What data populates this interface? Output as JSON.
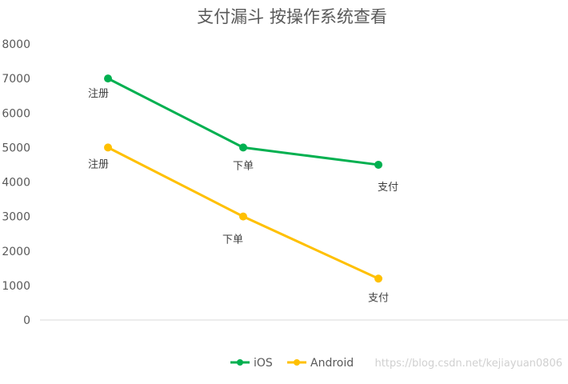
{
  "chart_data": {
    "type": "line",
    "title": "支付漏斗 按操作系统查看",
    "categories": [
      "注册",
      "下单",
      "支付"
    ],
    "series": [
      {
        "name": "iOS",
        "color": "#00b050",
        "values": [
          7000,
          5000,
          4500
        ],
        "data_labels": [
          "注册",
          "下单",
          "支付"
        ]
      },
      {
        "name": "Android",
        "color": "#ffc000",
        "values": [
          5000,
          3000,
          1200
        ],
        "data_labels": [
          "注册",
          "下单",
          "支付"
        ]
      }
    ],
    "ylim": [
      0,
      8000
    ],
    "yticks": [
      0,
      1000,
      2000,
      3000,
      4000,
      5000,
      6000,
      7000,
      8000
    ],
    "xlabel": "",
    "ylabel": "",
    "grid": false,
    "legend": "bottom"
  },
  "watermark": "https://blog.csdn.net/kejiayuan0806",
  "colors": {
    "title": "#595959",
    "axis_text": "#595959",
    "label_text": "#404040",
    "axis_line": "#d9d9d9"
  }
}
